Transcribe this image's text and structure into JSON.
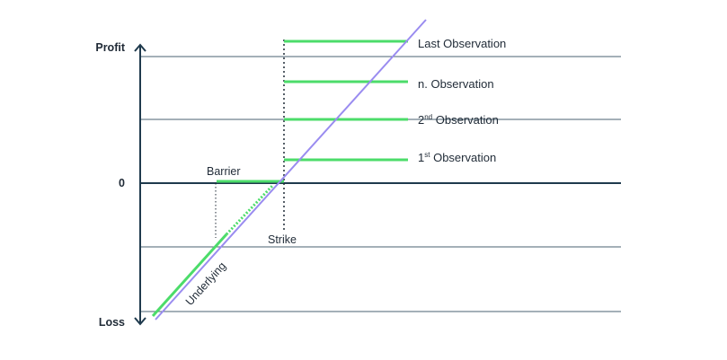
{
  "axis": {
    "top_label": "Profit",
    "zero_label": "0",
    "bottom_label": "Loss"
  },
  "annotations": {
    "barrier": "Barrier",
    "strike": "Strike",
    "underlying": "Underlying"
  },
  "observations": [
    {
      "label": "Last Observation",
      "sup": "",
      "rest": ""
    },
    {
      "label": "n. Observation",
      "sup": "",
      "rest": ""
    },
    {
      "label": "2",
      "sup": "nd",
      "rest": " Observation"
    },
    {
      "label": "1",
      "sup": "st",
      "rest": " Observation"
    }
  ],
  "colors": {
    "axis": "#1f3a4d",
    "grid": "#4a6272",
    "payoff": "#4cdc6a",
    "underlying": "#9a8cf0"
  }
}
